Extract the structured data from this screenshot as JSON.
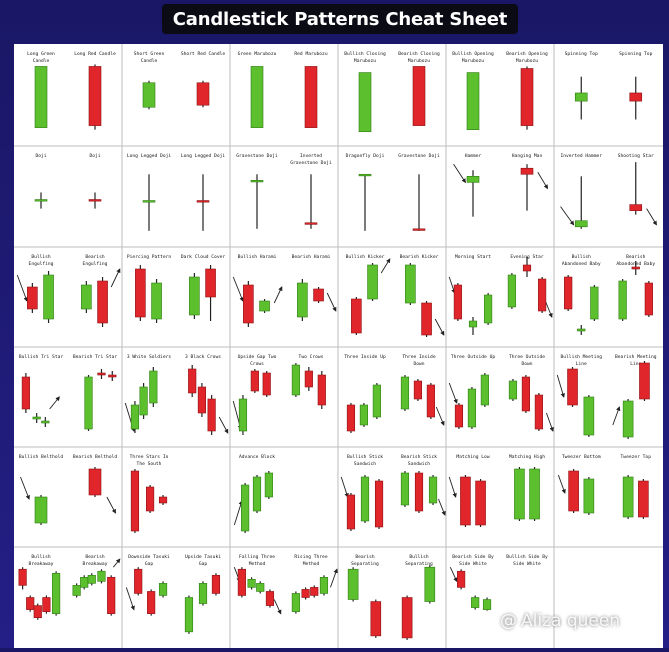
{
  "title": "Candlestick Patterns Cheat Sheet",
  "watermark": {
    "at": "@",
    "name": "Aliza queen"
  },
  "colors": {
    "bull": "#5cbf2e",
    "bullEdge": "#2f7d12",
    "bear": "#e0262a",
    "bearEdge": "#8c1215",
    "wick": "#222222",
    "grid": "#bdbdbd",
    "arrow": "#222222"
  },
  "labels": [
    [
      "Long Green Candle",
      "Long Red Candle",
      "Short Green Candle",
      "Short Red Candle",
      "Green Marubozu",
      "Red Marubozu",
      "Bullish Closing Marubozu",
      "Bearish Closing Marubozu",
      "Bullish Opening Marubozu",
      "Bearish Opening Marubozu",
      "Spinning Top",
      "Spinning Top"
    ],
    [
      "Doji",
      "Doji",
      "Long Legged Doji",
      "Long Legged Doji",
      "Gravestone Doji",
      "Inverted Gravestone Doji",
      "Dragonfly Doji",
      "Gravestone Doji",
      "Hammer",
      "Hanging Man",
      "Inverted Hammer",
      "Shooting Star"
    ],
    [
      "Bullish Engulfing",
      "Bearish Engulfing",
      "Piercing Pattern",
      "Dark Cloud Cover",
      "Bullish Harami",
      "Bearish Harami",
      "Bullish Kicker",
      "Bearish Kicker",
      "Morning Start",
      "Evening Star",
      "Bullish Abandoned Baby",
      "Bearish Abandoned Baby"
    ],
    [
      "Bullish Tri Star",
      "Bearish Tri Star",
      "3 White Soldiers",
      "3 Black Crows",
      "Upside Gap Two Crows",
      "Two Crows",
      "Three Inside Up",
      "Three Inside Down",
      "Three Outside Up",
      "Three Outside Down",
      "Bullish Meeting Line",
      "Bearish Meeting Line"
    ],
    [
      "Bullish Belthold",
      "Bearish Belthold",
      "Three Stars In The South",
      "",
      "Advance Block",
      "",
      "Bullish Stick Sandwich",
      "Bearish Stick Sandwich",
      "Matching Low",
      "Matching High",
      "Tweezer Bottom",
      "Tweezer Top"
    ],
    [
      "Bullish Breakaway",
      "Bearish Breakaway",
      "Downside Tasuki Gap",
      "Upside Tasuki Gap",
      "Falling Three Method",
      "Rising Three Method",
      "Bearish Separating Lines",
      "Bullish Separating Lines",
      "Bearish Side By Side White Lines",
      "Bullish Side By Side White Lines",
      "",
      ""
    ]
  ]
}
